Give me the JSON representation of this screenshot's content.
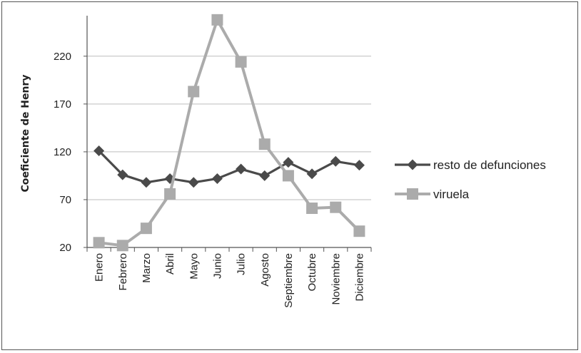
{
  "chart_data": {
    "type": "line",
    "title": "",
    "xlabel": "",
    "ylabel": "Coeficiente de Henry",
    "categories": [
      "Enero",
      "Febrero",
      "Marzo",
      "Abril",
      "Mayo",
      "Junio",
      "Julio",
      "Agosto",
      "Septiembre",
      "Octubre",
      "Noviembre",
      "Diciembre"
    ],
    "yticks": [
      20,
      70,
      120,
      170,
      220
    ],
    "ylim": [
      20,
      263
    ],
    "grid": "horizontal",
    "legend_position": "right",
    "series": [
      {
        "name": "resto de defunciones",
        "marker": "diamond",
        "color": "#4a4a4a",
        "values": [
          121,
          96,
          88,
          92,
          88,
          92,
          102,
          95,
          109,
          97,
          110,
          106
        ]
      },
      {
        "name": "viruela",
        "marker": "square",
        "color": "#ababab",
        "values": [
          25,
          22,
          40,
          76,
          183,
          258,
          214,
          128,
          95,
          61,
          62,
          37
        ]
      }
    ]
  }
}
